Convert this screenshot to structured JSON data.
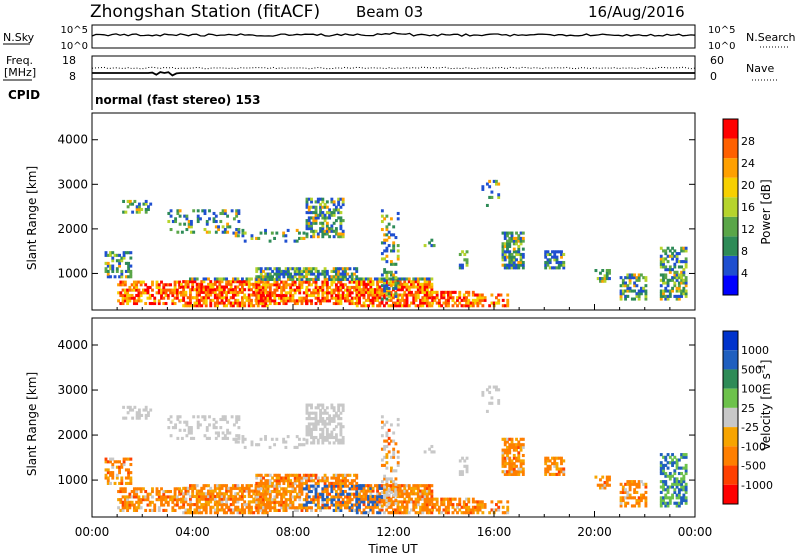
{
  "header": {
    "station": "Zhongshan Station (fitACF)",
    "beam": "Beam 03",
    "date": "16/Aug/2016"
  },
  "noise_panel": {
    "left_label": "N.Sky",
    "left_ticks": [
      "10^5",
      "10^0"
    ],
    "right_label": "N.Search",
    "right_ticks": [
      "10^5",
      "10^0"
    ]
  },
  "freq_panel": {
    "left_label_1": "Freq.",
    "left_label_2": "[MHz]",
    "left_ticks": [
      "18",
      "8"
    ],
    "right_label": "Nave",
    "right_ticks": [
      "60",
      "0"
    ]
  },
  "cpid": {
    "label": "CPID",
    "text": "normal (fast stereo) 153"
  },
  "colors": {
    "scale": [
      "#0000ff",
      "#1f5fbf",
      "#2e8b57",
      "#4db849",
      "#c8c8c8",
      "#f7a400",
      "#ff7f00",
      "#ff4000",
      "#ff0000"
    ]
  },
  "chart_data": [
    {
      "type": "heatmap",
      "title": "Power",
      "xlabel": "Time UT",
      "ylabel": "Slant Range [km]",
      "x_ticks": [
        "00:00",
        "04:00",
        "08:00",
        "12:00",
        "16:00",
        "20:00",
        "00:00"
      ],
      "xlim_hours": [
        0,
        24
      ],
      "ylim": [
        180,
        4600
      ],
      "y_ticks": [
        1000,
        2000,
        3000,
        4000
      ],
      "colorbar": {
        "label": "Power [dB]",
        "ticks": [
          "4",
          "8",
          "12",
          "16",
          "20",
          "24",
          "28"
        ],
        "range": [
          0,
          32
        ]
      }
    },
    {
      "type": "heatmap",
      "title": "Velocity",
      "xlabel": "Time UT",
      "ylabel": "Slant Range [km]",
      "x_ticks": [
        "00:00",
        "04:00",
        "08:00",
        "12:00",
        "16:00",
        "20:00",
        "00:00"
      ],
      "xlim_hours": [
        0,
        24
      ],
      "ylim": [
        180,
        4600
      ],
      "y_ticks": [
        1000,
        2000,
        3000,
        4000
      ],
      "colorbar": {
        "label": "Velocity [m s^-1]",
        "ticks": [
          "1000",
          "500",
          "100",
          "25",
          "-25",
          "-100",
          "-500",
          "-1000"
        ]
      }
    }
  ]
}
